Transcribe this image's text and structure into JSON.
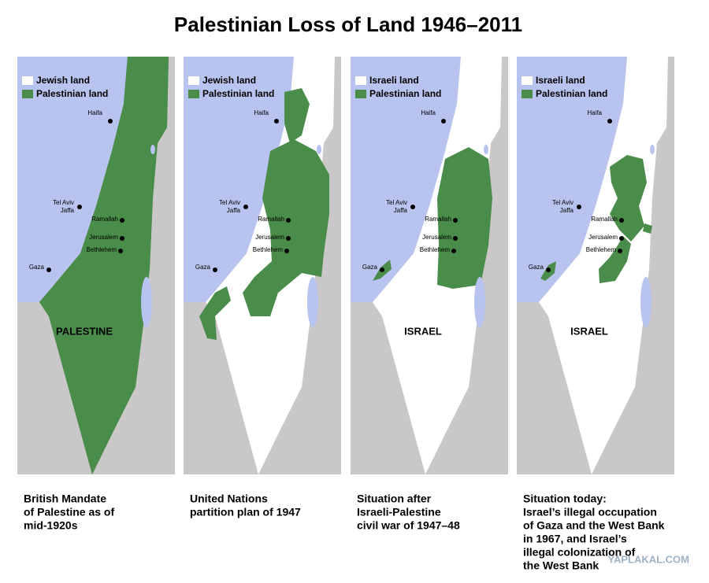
{
  "title": "Palestinian Loss of Land 1946–2011",
  "cities": [
    "Haifa",
    "Tel Aviv",
    "Jaffa",
    "Ramallah",
    "Jerusalem",
    "Bethlehem",
    "Gaza"
  ],
  "panels": [
    {
      "legend": [
        "Jewish land",
        "Palestinian land"
      ],
      "region_label": "PALESTINE",
      "caption": [
        "British Mandate",
        "of Palestine as of",
        "mid-1920s"
      ]
    },
    {
      "legend": [
        "Jewish land",
        "Palestinian land"
      ],
      "caption": [
        "United Nations",
        "partition plan of 1947"
      ]
    },
    {
      "legend": [
        "Israeli land",
        "Palestinian land"
      ],
      "region_label": "ISRAEL",
      "caption": [
        "Situation after",
        "Israeli-Palestine",
        "civil war of 1947–48"
      ]
    },
    {
      "legend": [
        "Israeli land",
        "Palestinian land"
      ],
      "region_label": "ISRAEL",
      "caption": [
        "Situation today:",
        "Israel’s illegal occupation",
        "of Gaza and the West Bank",
        "in 1967, and Israel’s",
        "illegal colonization of",
        "the West Bank"
      ]
    }
  ],
  "watermark": "YAPLAKAL.COM"
}
